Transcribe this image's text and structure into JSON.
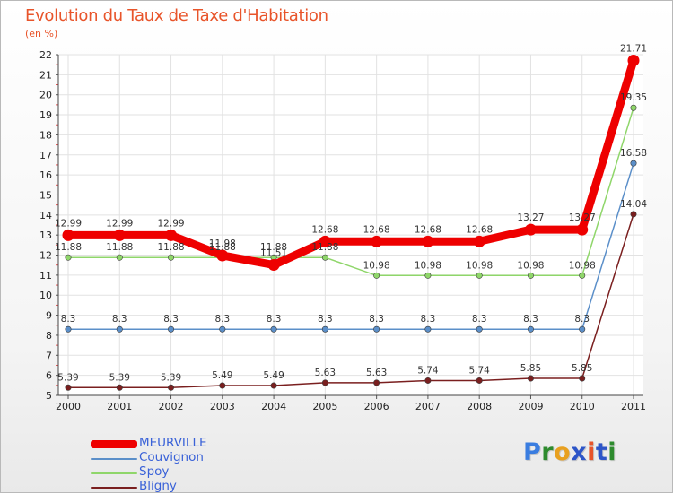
{
  "title": "Evolution du Taux de Taxe d'Habitation",
  "unit": "(en %)",
  "logo": {
    "letters": [
      "P",
      "r",
      "o",
      "x",
      "i",
      "t",
      "i"
    ],
    "colors": [
      "#3a7de0",
      "#2e8b2e",
      "#e8a020",
      "#2d55c8",
      "#e8542a",
      "#2d55c8",
      "#2e8b2e"
    ]
  },
  "chart_data": {
    "type": "line",
    "title": "Evolution du Taux de Taxe d'Habitation",
    "ylabel": "(en %)",
    "xlabel": "",
    "x": [
      "2000",
      "2001",
      "2002",
      "2003",
      "2004",
      "2005",
      "2006",
      "2007",
      "2008",
      "2009",
      "2010",
      "2011"
    ],
    "ylim": [
      5,
      22
    ],
    "yticks": [
      5,
      6,
      7,
      8,
      9,
      10,
      11,
      12,
      13,
      14,
      15,
      16,
      17,
      18,
      19,
      20,
      21,
      22
    ],
    "grid": true,
    "legend_position": "bottom-left",
    "series": [
      {
        "name": "Bligny",
        "color": "#7a1f1f",
        "values": [
          5.39,
          5.39,
          5.39,
          5.49,
          5.49,
          5.63,
          5.63,
          5.74,
          5.74,
          5.85,
          5.85,
          14.04
        ],
        "labels": [
          "5.39",
          "5.39",
          "5.39",
          "5.49",
          "5.49",
          "5.63",
          "5.63",
          "5.74",
          "5.74",
          "5.85",
          "5.85",
          "14.04"
        ]
      },
      {
        "name": "Couvignon",
        "color": "#5b8fc9",
        "values": [
          8.3,
          8.3,
          8.3,
          8.3,
          8.3,
          8.3,
          8.3,
          8.3,
          8.3,
          8.3,
          8.3,
          16.58
        ],
        "labels": [
          "8.3",
          "8.3",
          "8.3",
          "8.3",
          "8.3",
          "8.3",
          "8.3",
          "8.3",
          "8.3",
          "8.3",
          "8.3",
          "16.58"
        ]
      },
      {
        "name": "Spoy",
        "color": "#8fd66a",
        "values": [
          11.88,
          11.88,
          11.88,
          11.88,
          11.88,
          11.88,
          10.98,
          10.98,
          10.98,
          10.98,
          10.98,
          19.35
        ],
        "labels": [
          "11.88",
          "11.88",
          "11.88",
          "11.88",
          "11.88",
          "11.88",
          "10.98",
          "10.98",
          "10.98",
          "10.98",
          "10.98",
          "19.35"
        ]
      },
      {
        "name": "MEURVILLE",
        "color": "#ee0000",
        "values": [
          12.99,
          12.99,
          12.99,
          11.98,
          11.51,
          12.68,
          12.68,
          12.68,
          12.68,
          13.27,
          13.27,
          21.71
        ],
        "labels": [
          "12.99",
          "12.99",
          "12.99",
          "11.98",
          "11.51",
          "12.68",
          "12.68",
          "12.68",
          "12.68",
          "13.27",
          "13.27",
          "21.71"
        ]
      }
    ],
    "legend": [
      "MEURVILLE",
      "Couvignon",
      "Spoy",
      "Bligny"
    ]
  }
}
